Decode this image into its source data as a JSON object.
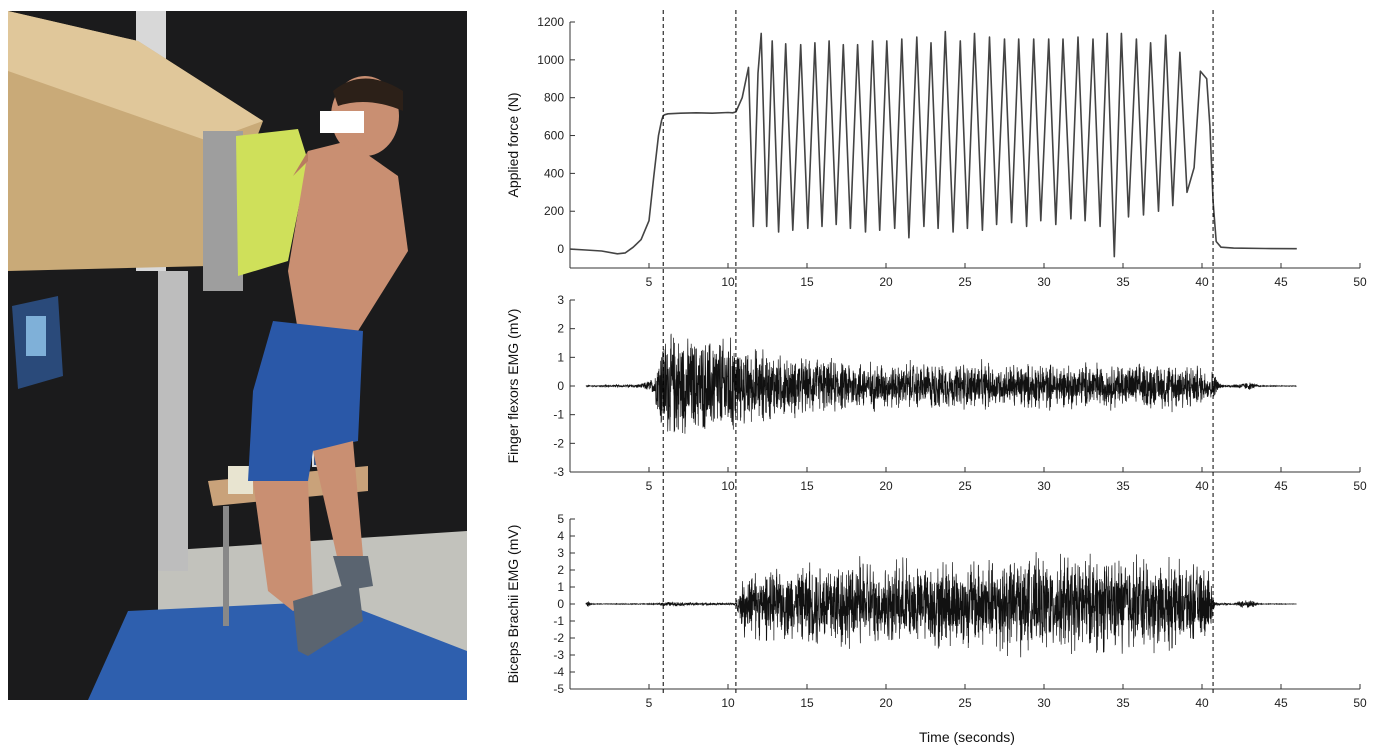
{
  "colors": {
    "background": "#ffffff",
    "trace": "#111111",
    "force_line": "#444444",
    "axis": "#333333",
    "marker_line": "#000000"
  },
  "photo": {
    "icons": [
      "climbing-board-icon",
      "person-hanging-icon",
      "laptop-icon",
      "table-icon",
      "mat-icon",
      "monitor-icon"
    ],
    "colors": {
      "wall": "#1b1b1c",
      "board": "#c9aa78",
      "hold": "#cfe05a",
      "shorts": "#2a58a8",
      "mat": "#2e5fae",
      "skin": "#c98f72",
      "floor": "#c2c2bc"
    }
  },
  "chart_data": [
    {
      "type": "line",
      "title": "",
      "xlabel": "",
      "ylabel": "Applied force (N)",
      "xlim": [
        0,
        50
      ],
      "ylim": [
        -100,
        1200
      ],
      "x_ticks": [
        5,
        10,
        15,
        20,
        25,
        30,
        35,
        40,
        45,
        50
      ],
      "y_ticks": [
        0,
        200,
        400,
        600,
        800,
        1000,
        1200
      ],
      "grid": false,
      "event_markers_x": [
        5.9,
        10.5,
        40.7
      ],
      "series": [
        {
          "x": [
            0,
            1,
            2,
            3,
            3.5,
            4,
            4.5,
            5,
            5.3,
            5.6,
            5.8,
            5.9,
            6,
            6.2,
            7,
            8,
            9,
            10,
            10.3,
            10.5,
            10.9,
            11.3,
            11.6,
            11.9,
            12.1,
            12.45,
            12.8,
            13.2,
            13.65,
            14.1,
            14.6,
            15.05,
            15.5,
            15.95,
            16.4,
            16.85,
            17.3,
            17.75,
            18.2,
            18.7,
            19.15,
            19.6,
            20.05,
            20.55,
            21,
            21.45,
            21.95,
            22.4,
            22.85,
            23.3,
            23.75,
            24.25,
            24.7,
            25.15,
            25.6,
            26.1,
            26.55,
            27,
            27.5,
            27.95,
            28.4,
            28.9,
            29.35,
            29.8,
            30.3,
            30.75,
            31.2,
            31.7,
            32.15,
            32.6,
            33.1,
            33.55,
            34,
            34.45,
            34.9,
            35.35,
            35.85,
            36.3,
            36.75,
            37.25,
            37.7,
            38.15,
            38.6,
            39.05,
            39.5,
            39.9,
            40.3,
            40.5,
            40.7,
            40.9,
            41.2,
            42,
            44,
            46
          ],
          "y": [
            0,
            -5,
            -10,
            -25,
            -20,
            10,
            50,
            150,
            380,
            600,
            680,
            705,
            710,
            715,
            718,
            720,
            718,
            722,
            720,
            725,
            800,
            960,
            120,
            930,
            1140,
            120,
            1100,
            90,
            1085,
            100,
            1080,
            110,
            1090,
            120,
            1100,
            130,
            1080,
            110,
            1080,
            90,
            1100,
            100,
            1100,
            110,
            1110,
            60,
            1120,
            120,
            1090,
            110,
            1150,
            90,
            1100,
            110,
            1140,
            100,
            1120,
            130,
            1110,
            140,
            1110,
            120,
            1110,
            150,
            1110,
            130,
            1110,
            160,
            1120,
            150,
            1110,
            120,
            1140,
            -40,
            1140,
            170,
            1110,
            180,
            1090,
            200,
            1130,
            230,
            1040,
            300,
            430,
            940,
            900,
            650,
            250,
            40,
            10,
            5,
            3,
            2
          ]
        }
      ]
    },
    {
      "type": "line",
      "title": "",
      "xlabel": "",
      "ylabel": "Finger flexors EMG (mV)",
      "xlim": [
        0,
        50
      ],
      "ylim": [
        -3,
        3
      ],
      "x_ticks": [
        5,
        10,
        15,
        20,
        25,
        30,
        35,
        40,
        45,
        50
      ],
      "y_ticks": [
        -3,
        -2,
        -1,
        0,
        1,
        2,
        3
      ],
      "grid": false,
      "event_markers_x": [
        5.9,
        10.5,
        40.7
      ],
      "series": [
        {
          "x": [
            1,
            3.5,
            4.5,
            5.3,
            5.8,
            6.5,
            8,
            9.5,
            10.5,
            11.5,
            14,
            17,
            20,
            24,
            28,
            32,
            36,
            39,
            40.7,
            41.1,
            41.5,
            43,
            43.6,
            44,
            46
          ],
          "y_envelope": [
            0.02,
            0.05,
            0.08,
            0.3,
            1.8,
            2.0,
            1.7,
            1.8,
            1.9,
            1.6,
            1.3,
            1.1,
            1.0,
            1.0,
            0.95,
            0.95,
            0.95,
            1.0,
            0.6,
            0.1,
            0.02,
            0.15,
            0.03,
            0.02,
            0.01
          ],
          "burst_rate_per_s_after": 2.2
        }
      ]
    },
    {
      "type": "line",
      "title": "",
      "xlabel": "Time (seconds)",
      "ylabel": "Biceps Brachii EMG (mV)",
      "xlim": [
        0,
        50
      ],
      "ylim": [
        -5,
        5
      ],
      "x_ticks": [
        5,
        10,
        15,
        20,
        25,
        30,
        35,
        40,
        45,
        50
      ],
      "y_ticks": [
        -5,
        -4,
        -3,
        -2,
        -1,
        0,
        1,
        2,
        3,
        4,
        5
      ],
      "grid": false,
      "event_markers_x": [
        5.9,
        10.5,
        40.7
      ],
      "series": [
        {
          "x": [
            1,
            1.15,
            1.3,
            2,
            5.5,
            6,
            7.5,
            10,
            10.5,
            11,
            12,
            14,
            17,
            20,
            24,
            28,
            32,
            36,
            39,
            40.5,
            40.8,
            42,
            42.5,
            43.2,
            43.6,
            46
          ],
          "y_envelope": [
            0.02,
            0.25,
            0.03,
            0.02,
            0.03,
            0.15,
            0.1,
            0.06,
            0.1,
            2.5,
            2.3,
            2.6,
            3.4,
            2.9,
            3.3,
            3.6,
            3.4,
            3.5,
            3.0,
            2.5,
            0.1,
            0.03,
            0.25,
            0.25,
            0.03,
            0.01
          ],
          "burst_rate_per_s_after": 2.2
        }
      ]
    }
  ]
}
